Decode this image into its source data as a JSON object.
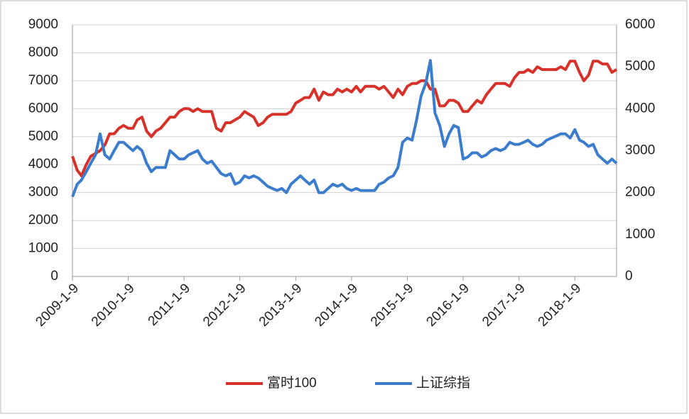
{
  "chart_data": {
    "type": "line",
    "x": [
      "2009-1-9",
      "2009-2-9",
      "2009-3-9",
      "2009-4-9",
      "2009-5-9",
      "2009-6-9",
      "2009-7-9",
      "2009-8-9",
      "2009-9-9",
      "2009-10-9",
      "2009-11-9",
      "2009-12-9",
      "2010-1-9",
      "2010-2-9",
      "2010-3-9",
      "2010-4-9",
      "2010-5-9",
      "2010-6-9",
      "2010-7-9",
      "2010-8-9",
      "2010-9-9",
      "2010-10-9",
      "2010-11-9",
      "2010-12-9",
      "2011-1-9",
      "2011-2-9",
      "2011-3-9",
      "2011-4-9",
      "2011-5-9",
      "2011-6-9",
      "2011-7-9",
      "2011-8-9",
      "2011-9-9",
      "2011-10-9",
      "2011-11-9",
      "2011-12-9",
      "2012-1-9",
      "2012-2-9",
      "2012-3-9",
      "2012-4-9",
      "2012-5-9",
      "2012-6-9",
      "2012-7-9",
      "2012-8-9",
      "2012-9-9",
      "2012-10-9",
      "2012-11-9",
      "2012-12-9",
      "2013-1-9",
      "2013-2-9",
      "2013-3-9",
      "2013-4-9",
      "2013-5-9",
      "2013-6-9",
      "2013-7-9",
      "2013-8-9",
      "2013-9-9",
      "2013-10-9",
      "2013-11-9",
      "2013-12-9",
      "2014-1-9",
      "2014-2-9",
      "2014-3-9",
      "2014-4-9",
      "2014-5-9",
      "2014-6-9",
      "2014-7-9",
      "2014-8-9",
      "2014-9-9",
      "2014-10-9",
      "2014-11-9",
      "2014-12-9",
      "2015-1-9",
      "2015-2-9",
      "2015-3-9",
      "2015-4-9",
      "2015-5-9",
      "2015-6-9",
      "2015-7-9",
      "2015-8-9",
      "2015-9-9",
      "2015-10-9",
      "2015-11-9",
      "2015-12-9",
      "2016-1-9",
      "2016-2-9",
      "2016-3-9",
      "2016-4-9",
      "2016-5-9",
      "2016-6-9",
      "2016-7-9",
      "2016-8-9",
      "2016-9-9",
      "2016-10-9",
      "2016-11-9",
      "2016-12-9",
      "2017-1-9",
      "2017-2-9",
      "2017-3-9",
      "2017-4-9",
      "2017-5-9",
      "2017-6-9",
      "2017-7-9",
      "2017-8-9",
      "2017-9-9",
      "2017-10-9",
      "2017-11-9",
      "2017-12-9",
      "2018-1-9",
      "2018-2-9",
      "2018-3-9",
      "2018-4-9",
      "2018-5-9",
      "2018-6-9",
      "2018-7-9",
      "2018-8-9",
      "2018-9-9",
      "2018-10-9"
    ],
    "series": [
      {
        "name": "富时100",
        "color": "#d7322a",
        "values": [
          4300,
          3800,
          3600,
          4000,
          4300,
          4400,
          4500,
          4700,
          5100,
          5100,
          5300,
          5400,
          5300,
          5300,
          5600,
          5700,
          5200,
          5000,
          5200,
          5300,
          5500,
          5700,
          5700,
          5900,
          6000,
          6000,
          5900,
          6000,
          5900,
          5900,
          5900,
          5300,
          5200,
          5500,
          5500,
          5600,
          5700,
          5900,
          5800,
          5700,
          5400,
          5500,
          5700,
          5800,
          5800,
          5800,
          5800,
          5900,
          6200,
          6300,
          6400,
          6400,
          6700,
          6300,
          6600,
          6500,
          6500,
          6700,
          6600,
          6700,
          6600,
          6800,
          6600,
          6800,
          6800,
          6800,
          6700,
          6800,
          6600,
          6400,
          6700,
          6500,
          6800,
          6900,
          6900,
          7000,
          7000,
          6700,
          6700,
          6100,
          6100,
          6300,
          6300,
          6200,
          5900,
          5900,
          6100,
          6300,
          6200,
          6500,
          6700,
          6900,
          6900,
          6900,
          6800,
          7100,
          7300,
          7300,
          7400,
          7300,
          7500,
          7400,
          7400,
          7400,
          7400,
          7500,
          7400,
          7700,
          7700,
          7300,
          7000,
          7200,
          7700,
          7700,
          7600,
          7600,
          7300,
          7400
        ]
      },
      {
        "name": "上证综指",
        "color": "#3b7dcc",
        "axis": "y2",
        "values": [
          1900,
          2200,
          2300,
          2500,
          2700,
          2900,
          3400,
          2900,
          2800,
          3000,
          3200,
          3200,
          3100,
          3000,
          3100,
          3000,
          2700,
          2500,
          2600,
          2600,
          2600,
          3000,
          2900,
          2800,
          2800,
          2900,
          2950,
          3000,
          2800,
          2700,
          2750,
          2600,
          2450,
          2400,
          2450,
          2200,
          2250,
          2400,
          2350,
          2400,
          2350,
          2250,
          2150,
          2100,
          2050,
          2100,
          2000,
          2200,
          2300,
          2400,
          2300,
          2200,
          2300,
          2000,
          2000,
          2100,
          2200,
          2150,
          2200,
          2100,
          2050,
          2100,
          2050,
          2050,
          2050,
          2050,
          2200,
          2250,
          2350,
          2400,
          2600,
          3200,
          3300,
          3250,
          3700,
          4300,
          4600,
          5150,
          3900,
          3600,
          3100,
          3400,
          3600,
          3550,
          2800,
          2850,
          2950,
          2950,
          2850,
          2900,
          3000,
          3050,
          3000,
          3050,
          3200,
          3150,
          3150,
          3200,
          3250,
          3150,
          3100,
          3150,
          3250,
          3300,
          3350,
          3400,
          3400,
          3300,
          3500,
          3250,
          3200,
          3100,
          3150,
          2900,
          2800,
          2700,
          2800,
          2700
        ]
      }
    ],
    "xlim": [
      "2009-1-9",
      "2018-10-9"
    ],
    "xticks": [
      "2009-1-9",
      "2010-1-9",
      "2011-1-9",
      "2012-1-9",
      "2013-1-9",
      "2014-1-9",
      "2015-1-9",
      "2016-1-9",
      "2017-1-9",
      "2018-1-9"
    ],
    "ylim": [
      0,
      9000
    ],
    "yticks": [
      0,
      1000,
      2000,
      3000,
      4000,
      5000,
      6000,
      7000,
      8000,
      9000
    ],
    "y2lim": [
      0,
      6000
    ],
    "y2ticks": [
      0,
      1000,
      2000,
      3000,
      4000,
      5000,
      6000
    ],
    "grid": true
  }
}
